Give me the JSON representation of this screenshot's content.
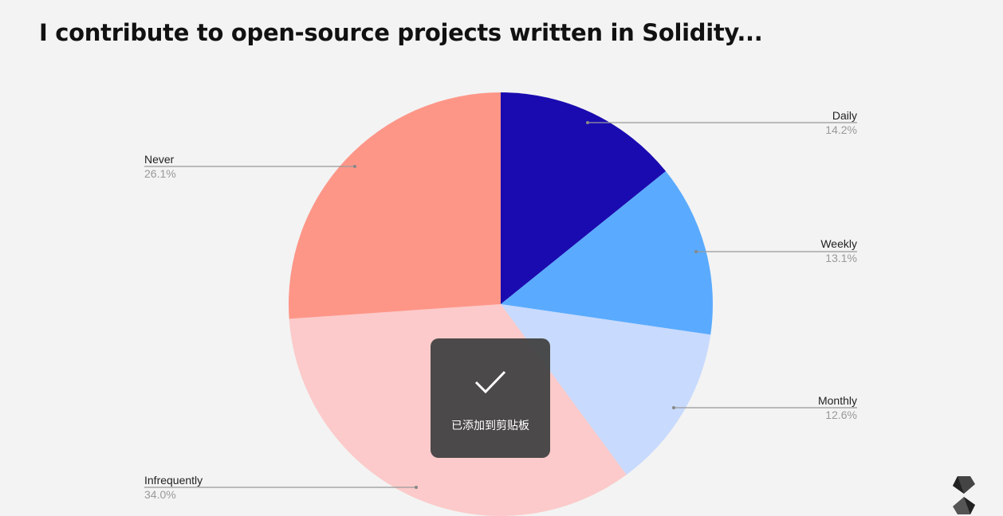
{
  "chart_data": {
    "type": "pie",
    "title": "I contribute to open-source projects written in Solidity...",
    "categories": [
      "Daily",
      "Weekly",
      "Monthly",
      "Infrequently",
      "Never"
    ],
    "values": [
      14.2,
      13.1,
      12.6,
      34.0,
      26.1
    ],
    "value_labels": [
      "14.2%",
      "13.1%",
      "12.6%",
      "34.0%",
      "26.1%"
    ],
    "colors": [
      "#1a0bb0",
      "#5aabff",
      "#c8dafd",
      "#fccaca",
      "#fe9688"
    ],
    "start_angle": "top, clockwise",
    "legend": "leader-line labels"
  },
  "toast": {
    "icon": "checkmark-icon",
    "text": "已添加到剪贴板"
  },
  "logo": {
    "name": "solidity-logo"
  }
}
